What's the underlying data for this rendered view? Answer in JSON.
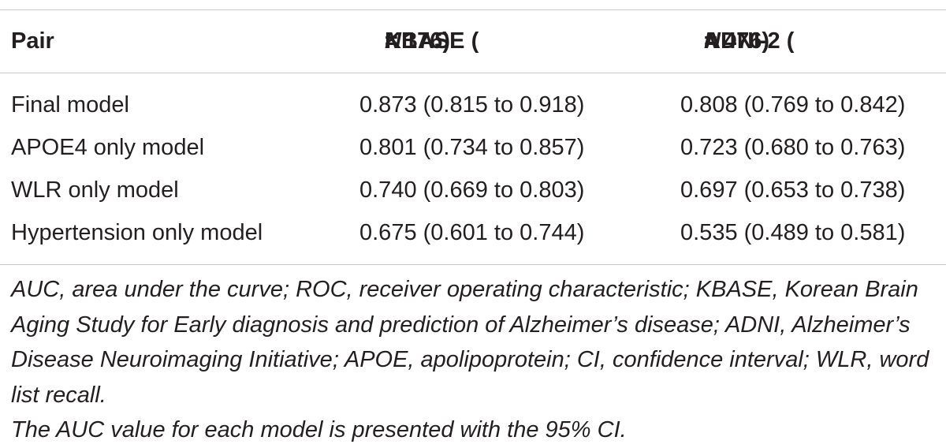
{
  "table": {
    "headers": {
      "pair": "Pair",
      "kbase_prefix": "KBASE (",
      "kbase_n": "N",
      "kbase_suffix": " = 176)",
      "adni_prefix": "ADNI-2 (",
      "adni_n": "N",
      "adni_suffix": " = 476)"
    },
    "rows": [
      {
        "pair": "Final model",
        "kbase": "0.873 (0.815 to 0.918)",
        "adni": "0.808 (0.769 to 0.842)"
      },
      {
        "pair": "APOE4 only model",
        "kbase": "0.801 (0.734 to 0.857)",
        "adni": "0.723 (0.680 to 0.763)"
      },
      {
        "pair": "WLR only model",
        "kbase": "0.740 (0.669 to 0.803)",
        "adni": "0.697 (0.653 to 0.738)"
      },
      {
        "pair": "Hypertension only model",
        "kbase": "0.675 (0.601 to 0.744)",
        "adni": "0.535 (0.489 to 0.581)"
      }
    ]
  },
  "footnotes": {
    "abbreviations": "AUC, area under the curve; ROC, receiver operating characteristic; KBASE, Korean Brain Aging Study for Early diagnosis and prediction of Alzheimer’s disease; ADNI, Alzheimer’s Disease Neuroimaging Initiative; APOE, apolipoprotein; CI, confidence interval; WLR, word list recall.",
    "note": "The AUC value for each model is presented with the 95% CI."
  }
}
